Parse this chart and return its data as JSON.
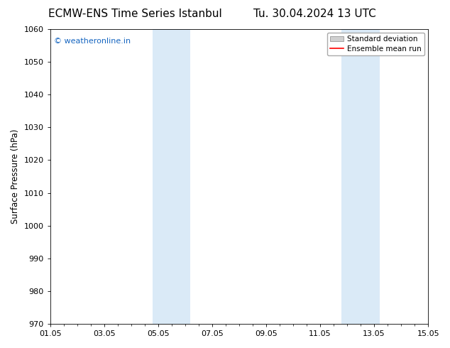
{
  "title_left": "ECMW-ENS Time Series Istanbul",
  "title_right": "Tu. 30.04.2024 13 UTC",
  "ylabel": "Surface Pressure (hPa)",
  "xlabel_ticks": [
    "01.05",
    "03.05",
    "05.05",
    "07.05",
    "09.05",
    "11.05",
    "13.05",
    "15.05"
  ],
  "x_tick_values": [
    0,
    2,
    4,
    6,
    8,
    10,
    12,
    14
  ],
  "ylim": [
    970,
    1060
  ],
  "xlim": [
    0,
    14
  ],
  "yticks": [
    970,
    980,
    990,
    1000,
    1010,
    1020,
    1030,
    1040,
    1050,
    1060
  ],
  "shaded_regions": [
    {
      "x_start": 3.8,
      "x_end": 5.2,
      "color": "#daeaf7"
    },
    {
      "x_start": 10.8,
      "x_end": 12.2,
      "color": "#daeaf7"
    }
  ],
  "watermark_text": "© weatheronline.in",
  "watermark_color": "#1565C0",
  "watermark_fontsize": 8,
  "background_color": "#ffffff",
  "legend_std_label": "Standard deviation",
  "legend_mean_label": "Ensemble mean run",
  "legend_std_facecolor": "#d0d0d0",
  "legend_std_edgecolor": "#888888",
  "legend_mean_color": "#ff0000",
  "title_fontsize": 11,
  "axis_tick_fontsize": 8,
  "ylabel_fontsize": 8.5,
  "legend_fontsize": 7.5
}
